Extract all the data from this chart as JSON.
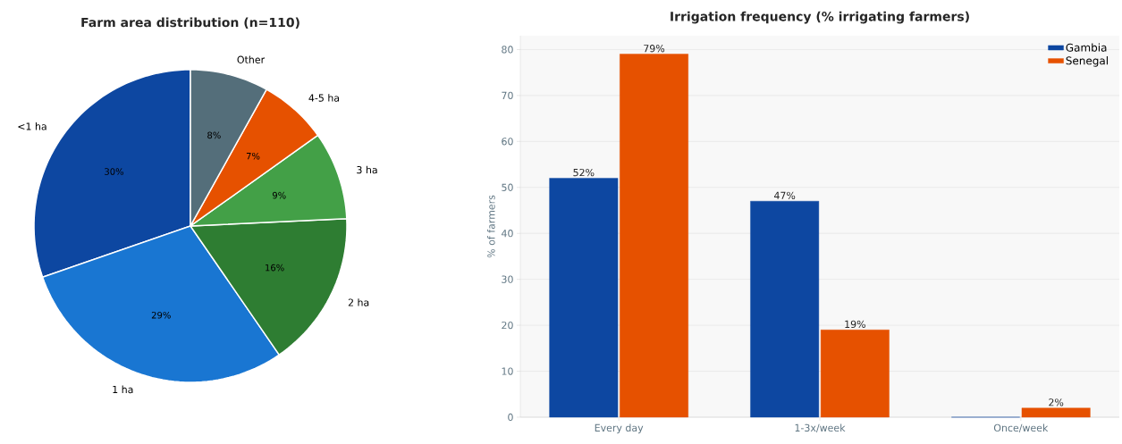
{
  "chart_data": [
    {
      "type": "pie",
      "title": "Farm area distribution (n=110)",
      "categories": [
        "<1 ha",
        "1 ha",
        "2 ha",
        "3 ha",
        "4-5 ha",
        "Other"
      ],
      "values": [
        30,
        29,
        16,
        9,
        7,
        8
      ],
      "colors": [
        "#0d47a1",
        "#1976d2",
        "#2e7d32",
        "#43a047",
        "#e65100",
        "#546e7a"
      ],
      "value_labels": [
        "30%",
        "29%",
        "16%",
        "9%",
        "7%",
        "8%"
      ]
    },
    {
      "type": "bar",
      "title": "Irrigation frequency (% irrigating farmers)",
      "ylabel": "% of farmers",
      "categories": [
        "Every day",
        "1-3x/week",
        "Once/week"
      ],
      "series": [
        {
          "name": "Gambia",
          "color": "#0d47a1",
          "values": [
            52,
            47,
            0
          ],
          "value_labels": [
            "52%",
            "47%",
            null
          ]
        },
        {
          "name": "Senegal",
          "color": "#e65100",
          "values": [
            79,
            19,
            2
          ],
          "value_labels": [
            "79%",
            "19%",
            "2%"
          ]
        }
      ],
      "ylim": [
        0,
        83
      ],
      "yticks": [
        0,
        10,
        20,
        30,
        40,
        50,
        60,
        70,
        80
      ],
      "grid": "y",
      "legend": "top right"
    }
  ]
}
